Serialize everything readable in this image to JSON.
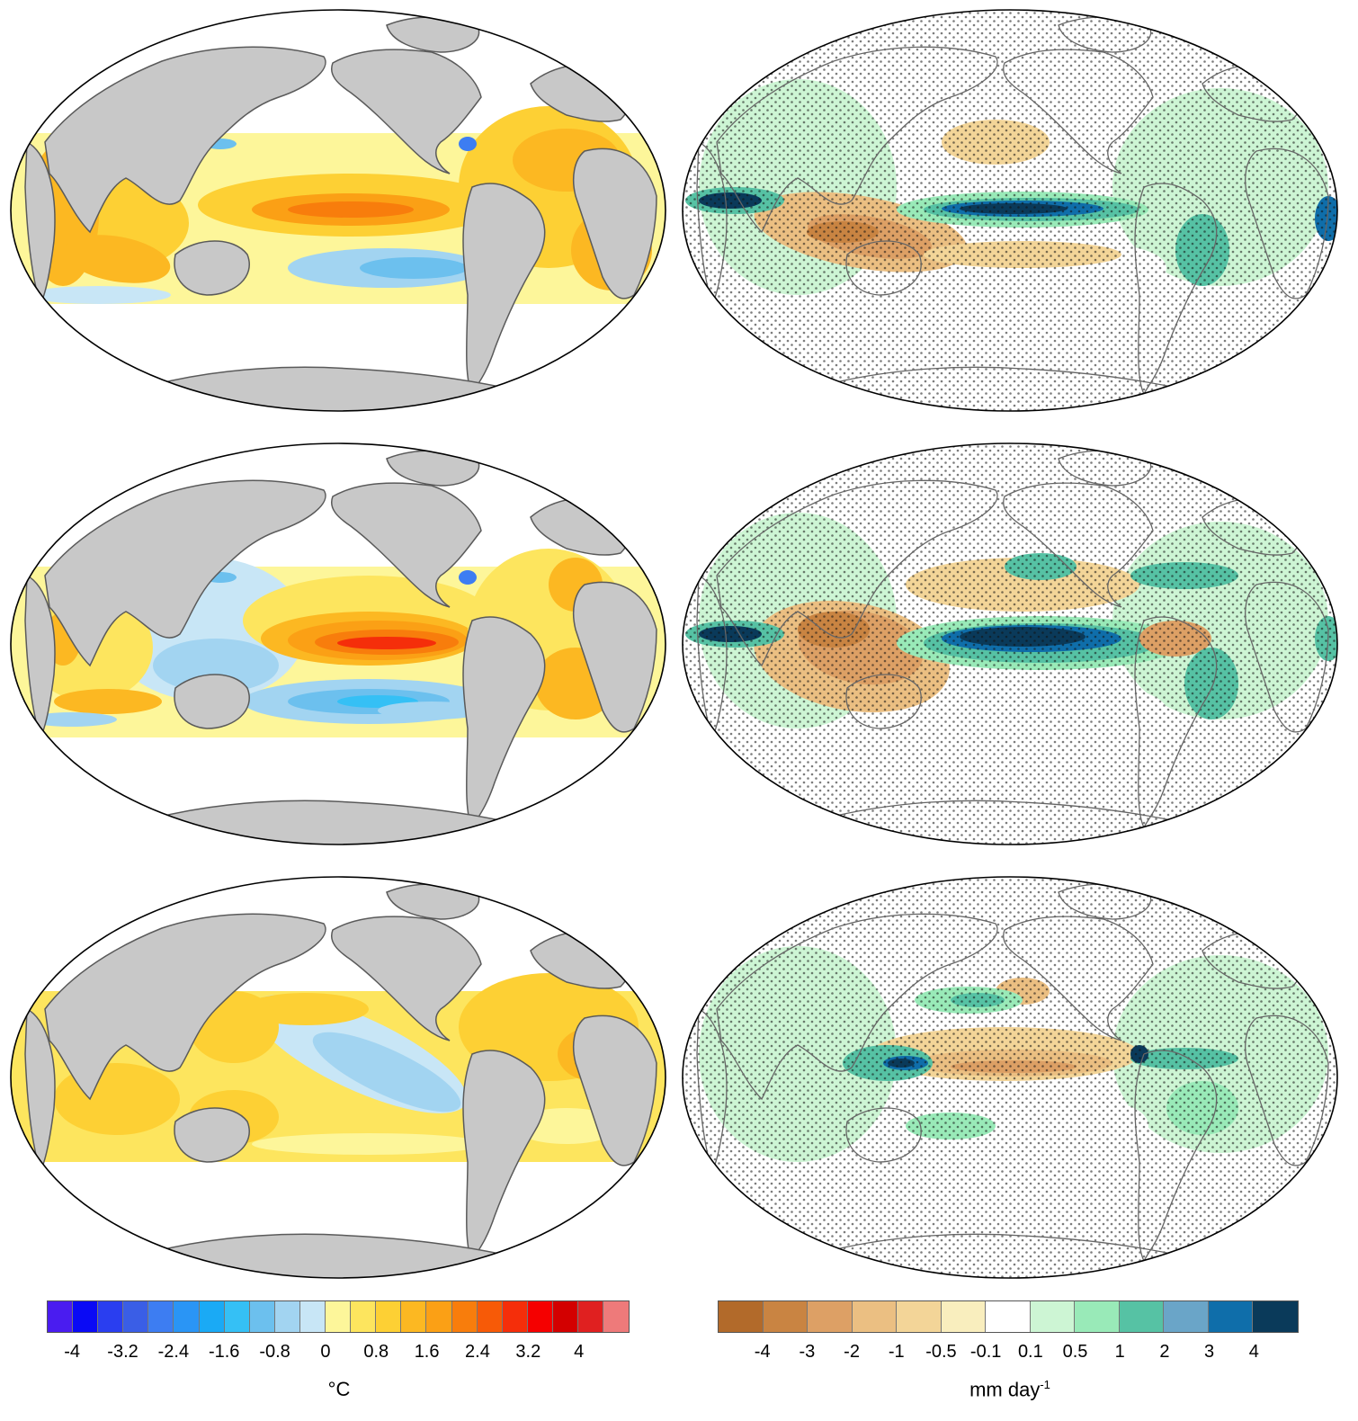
{
  "panels": [
    {
      "id": "sst-1",
      "kind": "sst",
      "pattern": "warm-east-pacific-mild",
      "stippled": false
    },
    {
      "id": "pr-1",
      "kind": "precip",
      "pattern": "enso-pr-moderate",
      "stippled": true
    },
    {
      "id": "sst-2",
      "kind": "sst",
      "pattern": "el-nino-strong",
      "stippled": false
    },
    {
      "id": "pr-2",
      "kind": "precip",
      "pattern": "enso-pr-strong",
      "stippled": true
    },
    {
      "id": "sst-3",
      "kind": "sst",
      "pattern": "warm-west-cool-east",
      "stippled": false
    },
    {
      "id": "pr-3",
      "kind": "precip",
      "pattern": "la-nina-like-pr",
      "stippled": true
    }
  ],
  "colors": {
    "land": "#c8c8c8",
    "coast": "#5a5a5a",
    "frame": "#000000"
  },
  "legend_sst": {
    "colors": [
      "#4a1cf0",
      "#0a0af5",
      "#2a3ef0",
      "#3a5ee6",
      "#3d7df2",
      "#2a95f5",
      "#1aaaf5",
      "#35c0f5",
      "#6cc0ee",
      "#a2d4f1",
      "#c8e6f6",
      "#fdf69a",
      "#fde55e",
      "#fdd034",
      "#fcb822",
      "#fba015",
      "#f87d0c",
      "#f75a07",
      "#f52e0a",
      "#f50000",
      "#d30000",
      "#e02020",
      "#ee7a7a"
    ],
    "ticks": [
      "-4",
      "-3.2",
      "-2.4",
      "-1.6",
      "-0.8",
      "0",
      "0.8",
      "1.6",
      "2.4",
      "3.2",
      "4"
    ],
    "unit": "°C"
  },
  "legend_pr": {
    "colors": [
      "#b26a2a",
      "#c98442",
      "#dda065",
      "#ebbf82",
      "#f3d598",
      "#f9eebe",
      "#ffffff",
      "#cdf5d4",
      "#99eab8",
      "#56c2a4",
      "#6aa5c8",
      "#0f6eaa",
      "#0a3a5a"
    ],
    "ticks": [
      "-4",
      "-3",
      "-2",
      "-1",
      "-0.5",
      "-0.1",
      "0.1",
      "0.5",
      "1",
      "2",
      "3",
      "4"
    ],
    "unit": "mm day",
    "unit_exp": "-1"
  }
}
